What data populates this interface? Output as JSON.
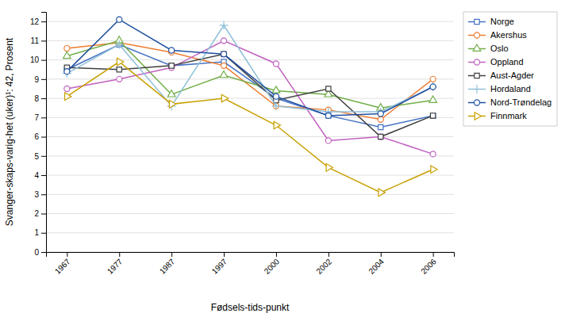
{
  "chart_data": {
    "type": "line",
    "x_label": "Fødsels-tids-punkt",
    "y_label": "Svanger-skaps-varig-het (uker)¹: 42, Prosent",
    "categories": [
      "1967",
      "1977",
      "1987",
      "1997",
      "2000",
      "2002",
      "2004",
      "2006"
    ],
    "series": [
      {
        "name": "Norge",
        "color": "#4472C4",
        "marker": "square",
        "values": [
          9.5,
          10.8,
          9.7,
          9.9,
          8.0,
          7.1,
          6.5,
          7.1
        ]
      },
      {
        "name": "Akershus",
        "color": "#ED7D31",
        "marker": "circle",
        "values": [
          10.6,
          10.9,
          10.4,
          9.7,
          7.6,
          7.4,
          6.9,
          9.0
        ]
      },
      {
        "name": "Oslo",
        "color": "#70AD47",
        "marker": "triangle-up",
        "values": [
          10.2,
          11.0,
          8.2,
          9.2,
          8.4,
          8.2,
          7.5,
          7.9
        ]
      },
      {
        "name": "Oppland",
        "color": "#C060C0",
        "marker": "circle",
        "values": [
          8.5,
          9.0,
          9.6,
          11.0,
          9.8,
          5.8,
          6.0,
          5.1
        ]
      },
      {
        "name": "Aust-Agder",
        "color": "#404040",
        "marker": "square",
        "values": [
          9.6,
          9.5,
          9.7,
          10.3,
          7.9,
          8.5,
          6.0,
          7.1
        ]
      },
      {
        "name": "Hordaland",
        "color": "#90C0D8",
        "marker": "plus",
        "values": [
          9.3,
          10.8,
          7.6,
          11.8,
          7.6,
          7.3,
          7.3,
          8.6
        ]
      },
      {
        "name": "Nord-Trøndelag",
        "color": "#2050A0",
        "marker": "circle",
        "values": [
          9.4,
          12.1,
          10.5,
          10.3,
          8.1,
          7.1,
          7.2,
          8.6
        ]
      },
      {
        "name": "Finnmark",
        "color": "#C8A000",
        "marker": "triangle-right",
        "values": [
          8.1,
          9.9,
          7.7,
          8.0,
          6.6,
          4.4,
          3.1,
          4.3
        ]
      }
    ],
    "ylim": [
      0,
      12.5
    ],
    "yticks": [
      0,
      1,
      2,
      3,
      4,
      5,
      6,
      7,
      8,
      9,
      10,
      11,
      12
    ],
    "grid": true,
    "legend": "right"
  }
}
